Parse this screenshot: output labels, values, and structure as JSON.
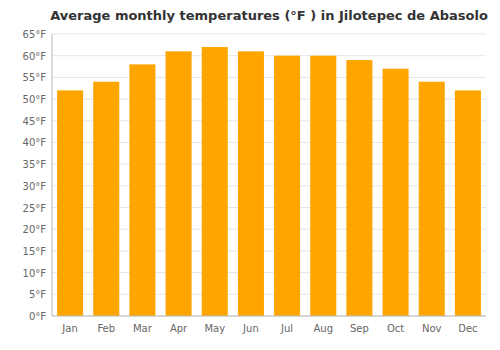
{
  "chart_data": {
    "type": "bar",
    "title": "Average monthly temperatures (°F ) in Jilotepec de Abasolo",
    "categories": [
      "Jan",
      "Feb",
      "Mar",
      "Apr",
      "May",
      "Jun",
      "Jul",
      "Aug",
      "Sep",
      "Oct",
      "Nov",
      "Dec"
    ],
    "values": [
      52,
      54,
      58,
      61,
      62,
      61,
      60,
      60,
      59,
      57,
      54,
      52
    ],
    "color": "#FFA500",
    "ylim": [
      0,
      65
    ],
    "yticks": [
      {
        "value": 0,
        "label": "0°F"
      },
      {
        "value": 5,
        "label": "5°F"
      },
      {
        "value": 10,
        "label": "10°F"
      },
      {
        "value": 15,
        "label": "15°F"
      },
      {
        "value": 20,
        "label": "20°F"
      },
      {
        "value": 25,
        "label": "25°F"
      },
      {
        "value": 30,
        "label": "30°F"
      },
      {
        "value": 35,
        "label": "35°F"
      },
      {
        "value": 40,
        "label": "40°F"
      },
      {
        "value": 45,
        "label": "45°F"
      },
      {
        "value": 50,
        "label": "50°F"
      },
      {
        "value": 55,
        "label": "55°F"
      },
      {
        "value": 60,
        "label": "60°F"
      },
      {
        "value": 65,
        "label": "65°F"
      }
    ],
    "grid": true
  }
}
